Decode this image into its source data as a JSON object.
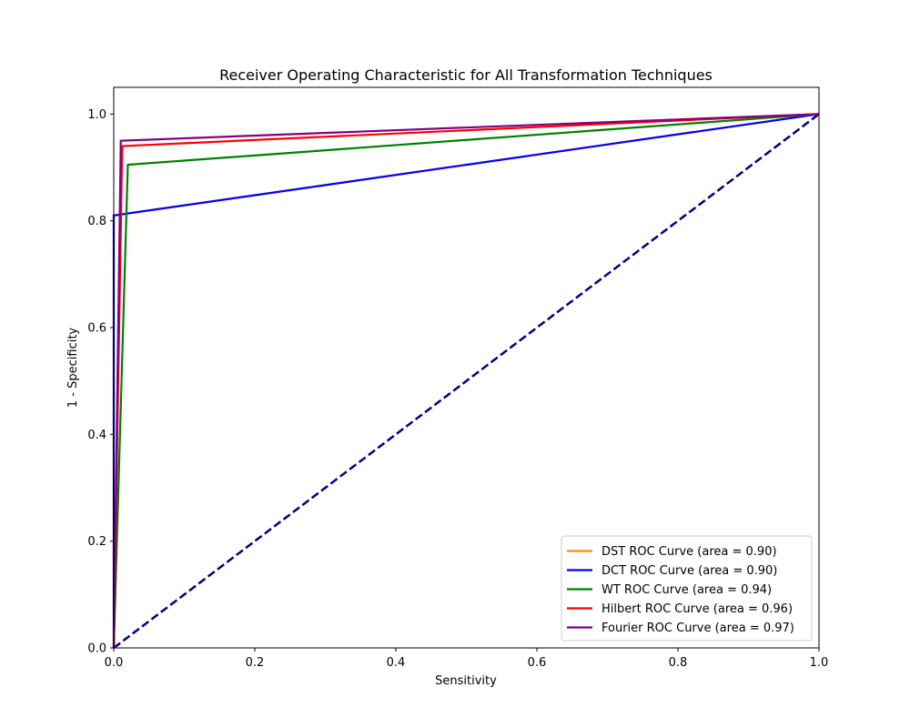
{
  "chart_data": {
    "type": "line",
    "title": "Receiver Operating Characteristic for All Transformation Techniques",
    "xlabel": "Sensitivity",
    "ylabel": "1 - Specificity",
    "xlim": [
      0.0,
      1.0
    ],
    "ylim": [
      0.0,
      1.05
    ],
    "xticks": [
      "0.0",
      "0.2",
      "0.4",
      "0.6",
      "0.8",
      "1.0"
    ],
    "yticks": [
      "0.0",
      "0.2",
      "0.4",
      "0.6",
      "0.8",
      "1.0"
    ],
    "grid": false,
    "legend_position": "lower-right",
    "series": [
      {
        "name": "DST ROC Curve (area = 0.90)",
        "color": "#ff8c00",
        "x": [
          0.0,
          0.0,
          1.0
        ],
        "y": [
          0.0,
          0.81,
          1.0
        ]
      },
      {
        "name": "DCT ROC Curve (area = 0.90)",
        "color": "#0000ff",
        "x": [
          0.0,
          0.0,
          1.0
        ],
        "y": [
          0.0,
          0.81,
          1.0
        ]
      },
      {
        "name": "WT ROC Curve (area = 0.94)",
        "color": "#008000",
        "x": [
          0.0,
          0.02,
          1.0
        ],
        "y": [
          0.0,
          0.905,
          1.0
        ]
      },
      {
        "name": "Hilbert ROC Curve (area = 0.96)",
        "color": "#ff0000",
        "x": [
          0.0,
          0.012,
          1.0
        ],
        "y": [
          0.0,
          0.94,
          1.0
        ]
      },
      {
        "name": "Fourier ROC Curve (area = 0.97)",
        "color": "#800080",
        "x": [
          0.0,
          0.01,
          1.0
        ],
        "y": [
          0.0,
          0.95,
          1.0
        ]
      }
    ],
    "reference_line": {
      "color": "#000080",
      "style": "dashed",
      "x": [
        0.0,
        1.0
      ],
      "y": [
        0.0,
        1.0
      ]
    }
  }
}
